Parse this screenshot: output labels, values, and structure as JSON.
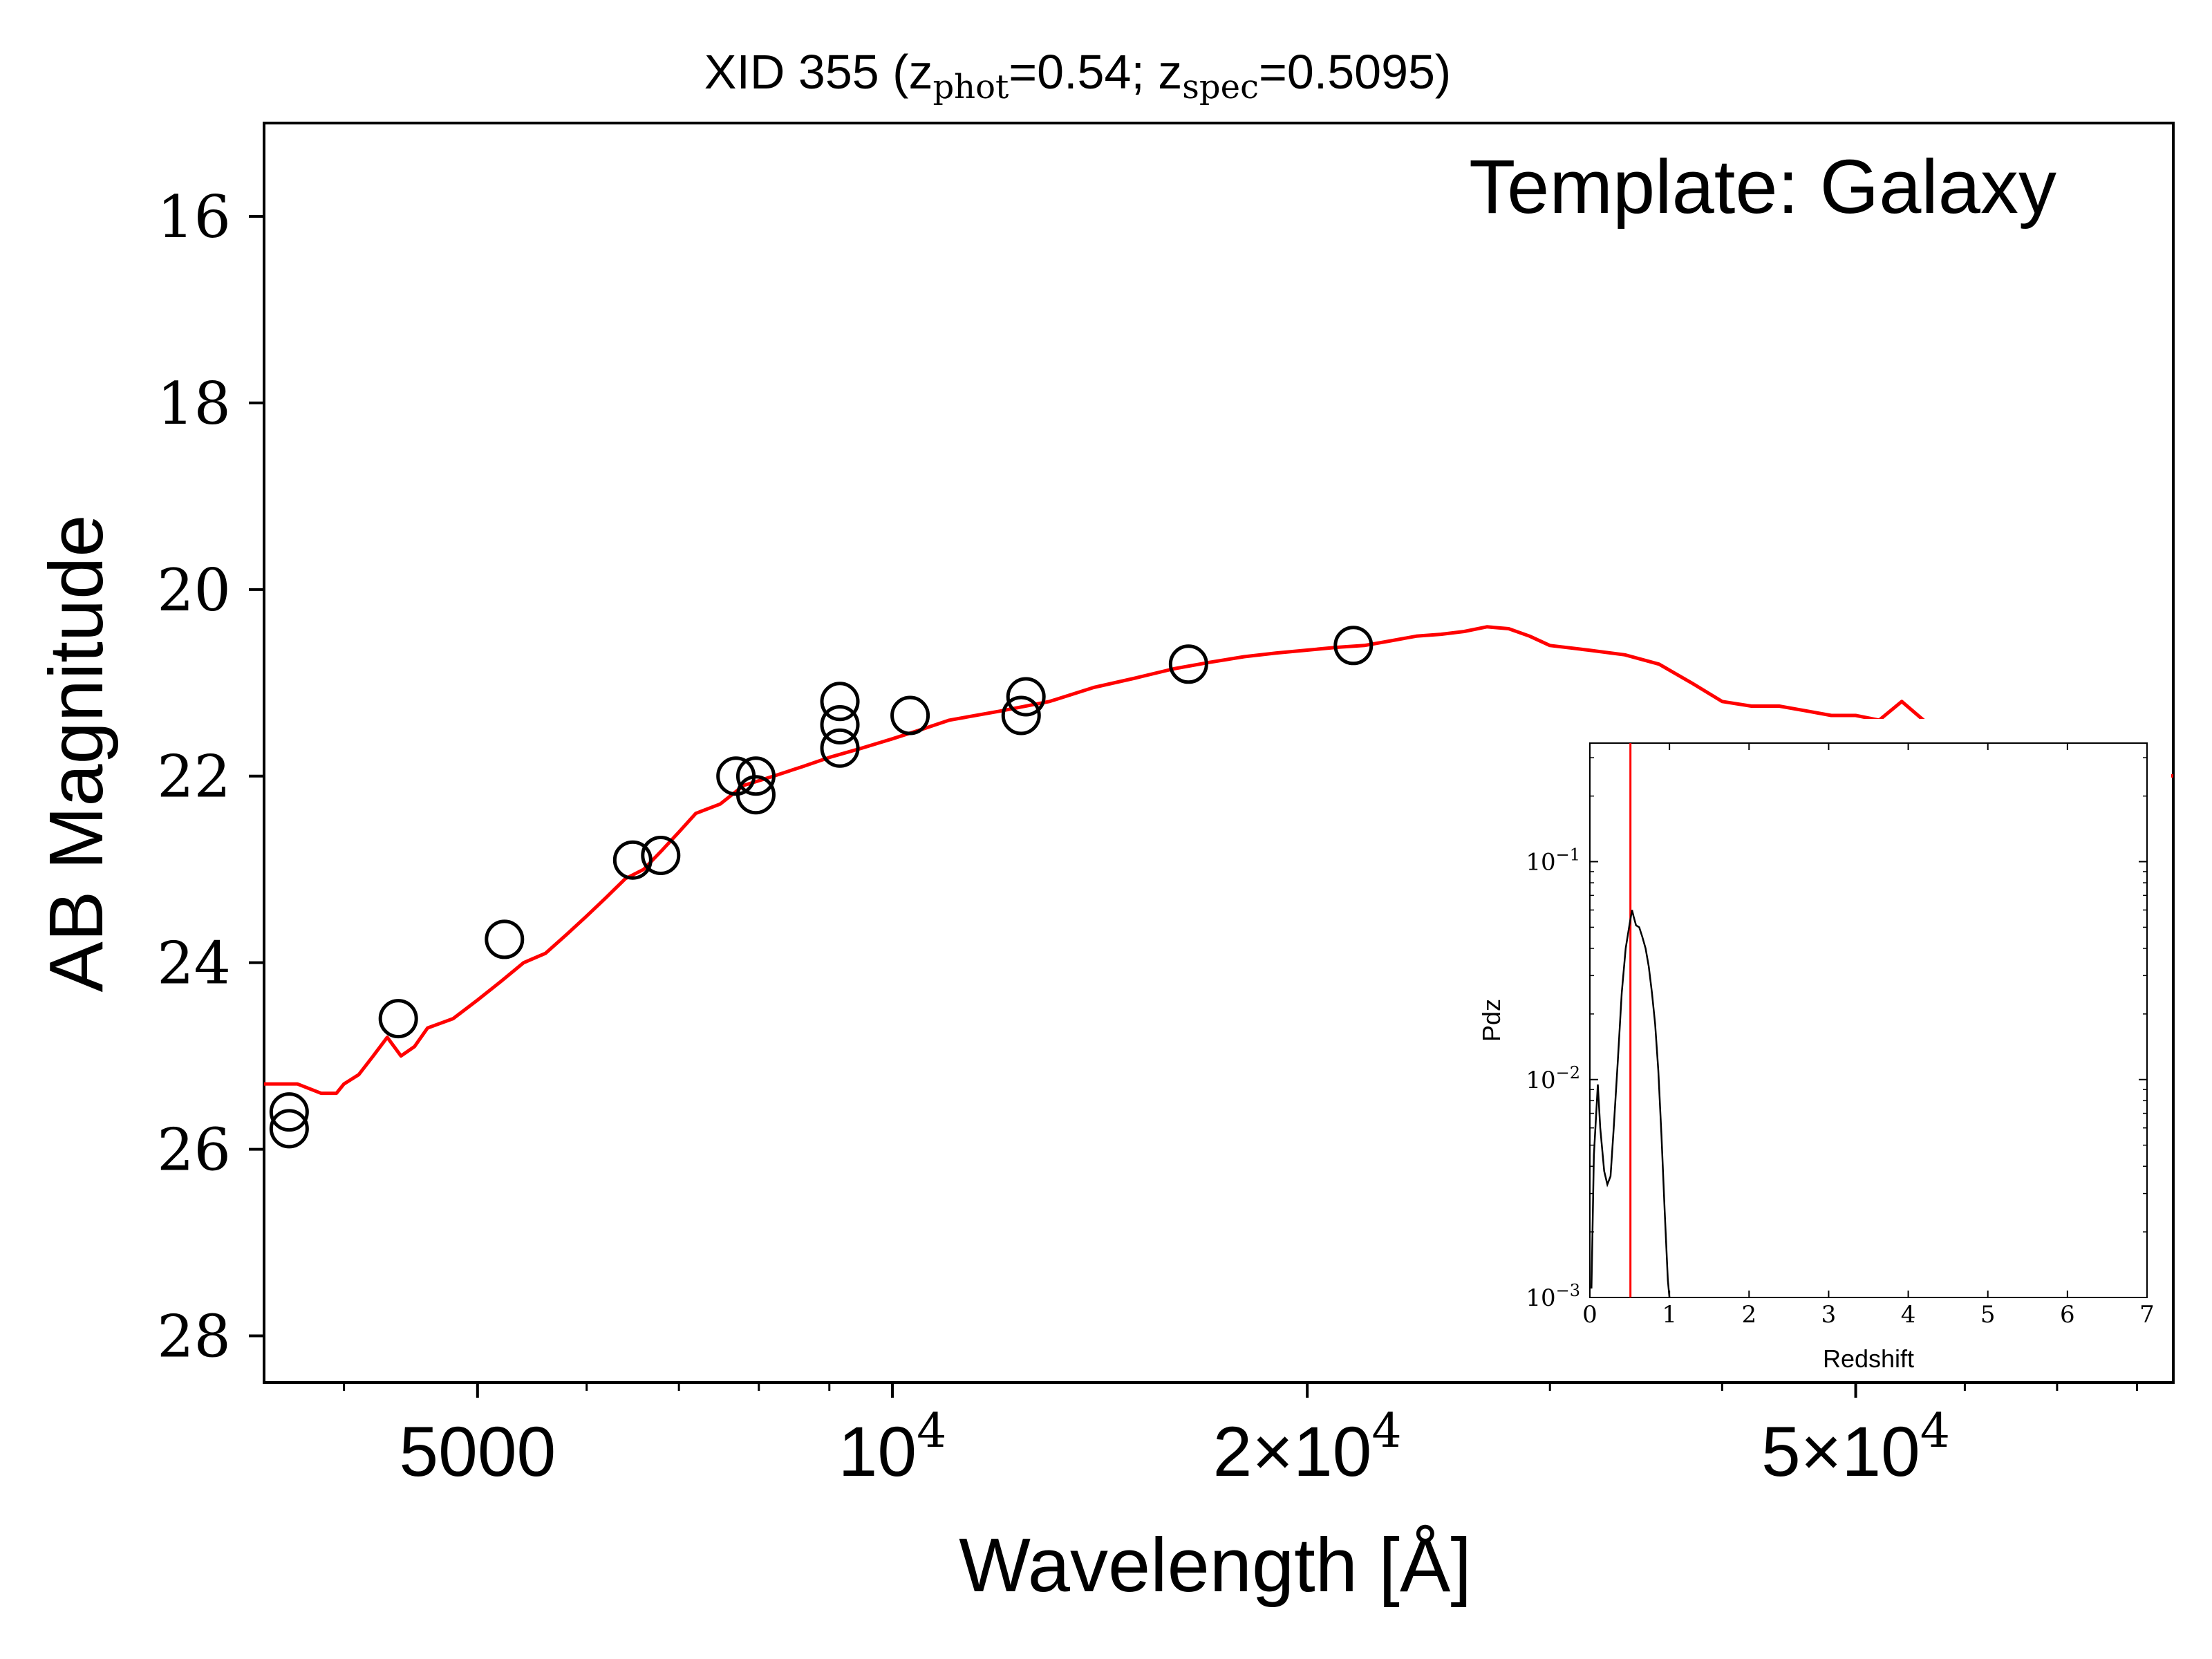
{
  "chart_data": [
    {
      "type": "line",
      "title": "XID 355 (z",
      "title_parts": {
        "prefix": "XID 355 (z",
        "sub1": "phot",
        "mid": "=0.54; z",
        "sub2": "spec",
        "suffix": "=0.5095)"
      },
      "annotation": "Template: Galaxy",
      "xlabel": "Wavelength [Å]",
      "ylabel": "AB Magnitude",
      "x_scale": "log",
      "y_inverted": true,
      "xlim": [
        3500,
        85000
      ],
      "ylim": [
        28.5,
        15.0
      ],
      "yticks": [
        16,
        18,
        20,
        22,
        24,
        26,
        28
      ],
      "xticks": [
        {
          "value": 5000,
          "base": "5000",
          "exp": ""
        },
        {
          "value": 10000,
          "base": "10",
          "exp": "4"
        },
        {
          "value": 20000,
          "base": "2×10",
          "exp": "4"
        },
        {
          "value": 50000,
          "base": "5×10",
          "exp": "4"
        }
      ],
      "colors": {
        "model": "#ff0000",
        "points": "#000000"
      },
      "series": [
        {
          "kind": "model",
          "x": [
            3500,
            3700,
            3850,
            3950,
            4000,
            4100,
            4200,
            4300,
            4400,
            4500,
            4600,
            4800,
            5000,
            5200,
            5400,
            5600,
            5800,
            6000,
            6200,
            6400,
            6600,
            6800,
            7000,
            7200,
            7500,
            7800,
            8200,
            8600,
            9000,
            9500,
            10000,
            10500,
            11000,
            12000,
            13000,
            14000,
            15000,
            16000,
            17000,
            18000,
            19000,
            20000,
            21000,
            22000,
            23000,
            24000,
            25000,
            26000,
            27000,
            28000,
            29000,
            30000,
            32000,
            34000,
            36000,
            38000,
            40000,
            42000,
            44000,
            46000,
            48000,
            50000,
            52000,
            54000,
            56000,
            58000,
            60000,
            65000,
            70000,
            75000,
            80000,
            85000
          ],
          "y": [
            25.3,
            25.3,
            25.4,
            25.4,
            25.3,
            25.2,
            25.0,
            24.8,
            25.0,
            24.9,
            24.7,
            24.6,
            24.4,
            24.2,
            24.0,
            23.9,
            23.7,
            23.5,
            23.3,
            23.1,
            23.0,
            22.8,
            22.6,
            22.4,
            22.3,
            22.1,
            22.0,
            21.9,
            21.8,
            21.7,
            21.6,
            21.5,
            21.4,
            21.3,
            21.2,
            21.05,
            20.95,
            20.85,
            20.78,
            20.72,
            20.68,
            20.65,
            20.62,
            20.6,
            20.55,
            20.5,
            20.48,
            20.45,
            20.4,
            20.42,
            20.5,
            20.6,
            20.65,
            20.7,
            20.8,
            21.0,
            21.2,
            21.25,
            21.25,
            21.3,
            21.35,
            21.35,
            21.4,
            21.2,
            21.4,
            21.5,
            21.6,
            21.7,
            21.8,
            21.9,
            21.95,
            22.0
          ]
        },
        {
          "kind": "photometry",
          "x": [
            3650,
            3650,
            4380,
            5230,
            6480,
            6790,
            7700,
            7960,
            7960,
            9160,
            9160,
            9160,
            10300,
            12400,
            12500,
            16400,
            21600
          ],
          "y": [
            25.78,
            25.6,
            24.6,
            23.75,
            22.9,
            22.85,
            22.0,
            22.2,
            22.0,
            21.7,
            21.45,
            21.2,
            21.35,
            21.35,
            21.15,
            20.8,
            20.6
          ]
        }
      ]
    },
    {
      "type": "line",
      "xlabel": "Redshift",
      "ylabel": "Pdz",
      "x_scale": "linear",
      "y_scale": "log",
      "xlim": [
        0,
        7
      ],
      "ylim": [
        0.001,
        0.35
      ],
      "xticks": [
        0,
        1,
        2,
        3,
        4,
        5,
        6,
        7
      ],
      "yticks": [
        {
          "value": 0.001,
          "base": "10",
          "exp": "−3"
        },
        {
          "value": 0.01,
          "base": "10",
          "exp": "−2"
        },
        {
          "value": 0.1,
          "base": "10",
          "exp": "−1"
        }
      ],
      "z_spec": 0.5095,
      "colors": {
        "pdz": "#000000",
        "z_spec_line": "#ff0000"
      },
      "series": [
        {
          "x": [
            0.02,
            0.05,
            0.1,
            0.13,
            0.18,
            0.22,
            0.26,
            0.3,
            0.35,
            0.4,
            0.45,
            0.5,
            0.53,
            0.55,
            0.58,
            0.62,
            0.66,
            0.7,
            0.74,
            0.78,
            0.82,
            0.86,
            0.9,
            0.94,
            0.98,
            1.0
          ],
          "y": [
            0.0011,
            0.0045,
            0.0095,
            0.006,
            0.0038,
            0.0033,
            0.0036,
            0.006,
            0.012,
            0.025,
            0.04,
            0.052,
            0.06,
            0.056,
            0.051,
            0.05,
            0.045,
            0.04,
            0.033,
            0.025,
            0.018,
            0.011,
            0.0055,
            0.0025,
            0.0012,
            0.001
          ]
        }
      ]
    }
  ]
}
